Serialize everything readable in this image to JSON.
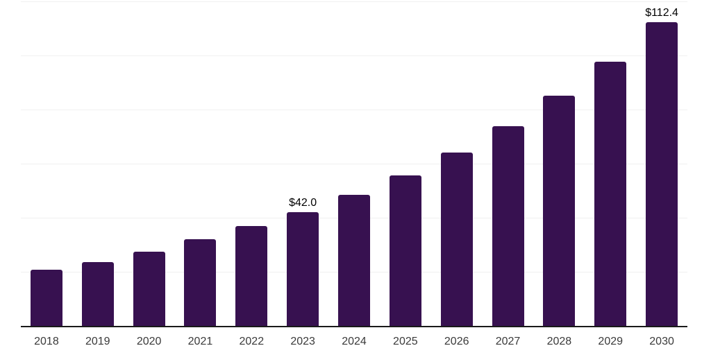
{
  "chart_data": {
    "type": "bar",
    "title": "",
    "xlabel": "",
    "ylabel": "",
    "categories": [
      "2018",
      "2019",
      "2020",
      "2021",
      "2022",
      "2023",
      "2024",
      "2025",
      "2026",
      "2027",
      "2028",
      "2029",
      "2030"
    ],
    "values": [
      20.8,
      23.6,
      27.5,
      32.0,
      36.9,
      42.0,
      48.4,
      55.7,
      64.1,
      73.9,
      85.2,
      97.7,
      112.4
    ],
    "data_labels": [
      "",
      "",
      "",
      "",
      "",
      "$42.0",
      "",
      "",
      "",
      "",
      "",
      "",
      "$112.4"
    ],
    "ylim": [
      0,
      120
    ],
    "grid_interval": 20,
    "grid_visible": true,
    "legend_position": "none",
    "currency_unit": "$"
  },
  "colors": {
    "bar": "#371150",
    "axis_line": "#1a1a1a",
    "gridline": "#f0f0f0",
    "tick_label": "#3a3a3a",
    "data_label": "#000000",
    "background": "#ffffff"
  }
}
